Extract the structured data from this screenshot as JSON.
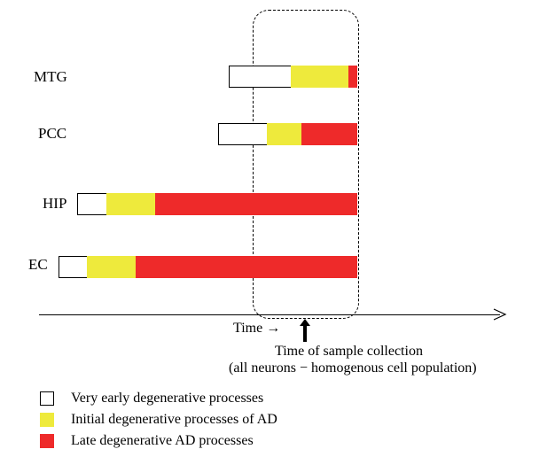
{
  "regions": [
    {
      "label": "MTG"
    },
    {
      "label": "PCC"
    },
    {
      "label": "HIP"
    },
    {
      "label": "EC"
    }
  ],
  "axis": {
    "time_label": "Time →"
  },
  "sample_collection": {
    "line1": "Time of sample collection",
    "line2": "(all neurons − homogenous cell population)"
  },
  "legend": {
    "very_early": "Very early degenerative processes",
    "initial": "Initial degenerative processes of AD",
    "late": "Late degenerative AD processes"
  },
  "colors": {
    "very_early": "#ffffff",
    "initial": "#eeea3c",
    "late": "#ee2a2a"
  }
}
